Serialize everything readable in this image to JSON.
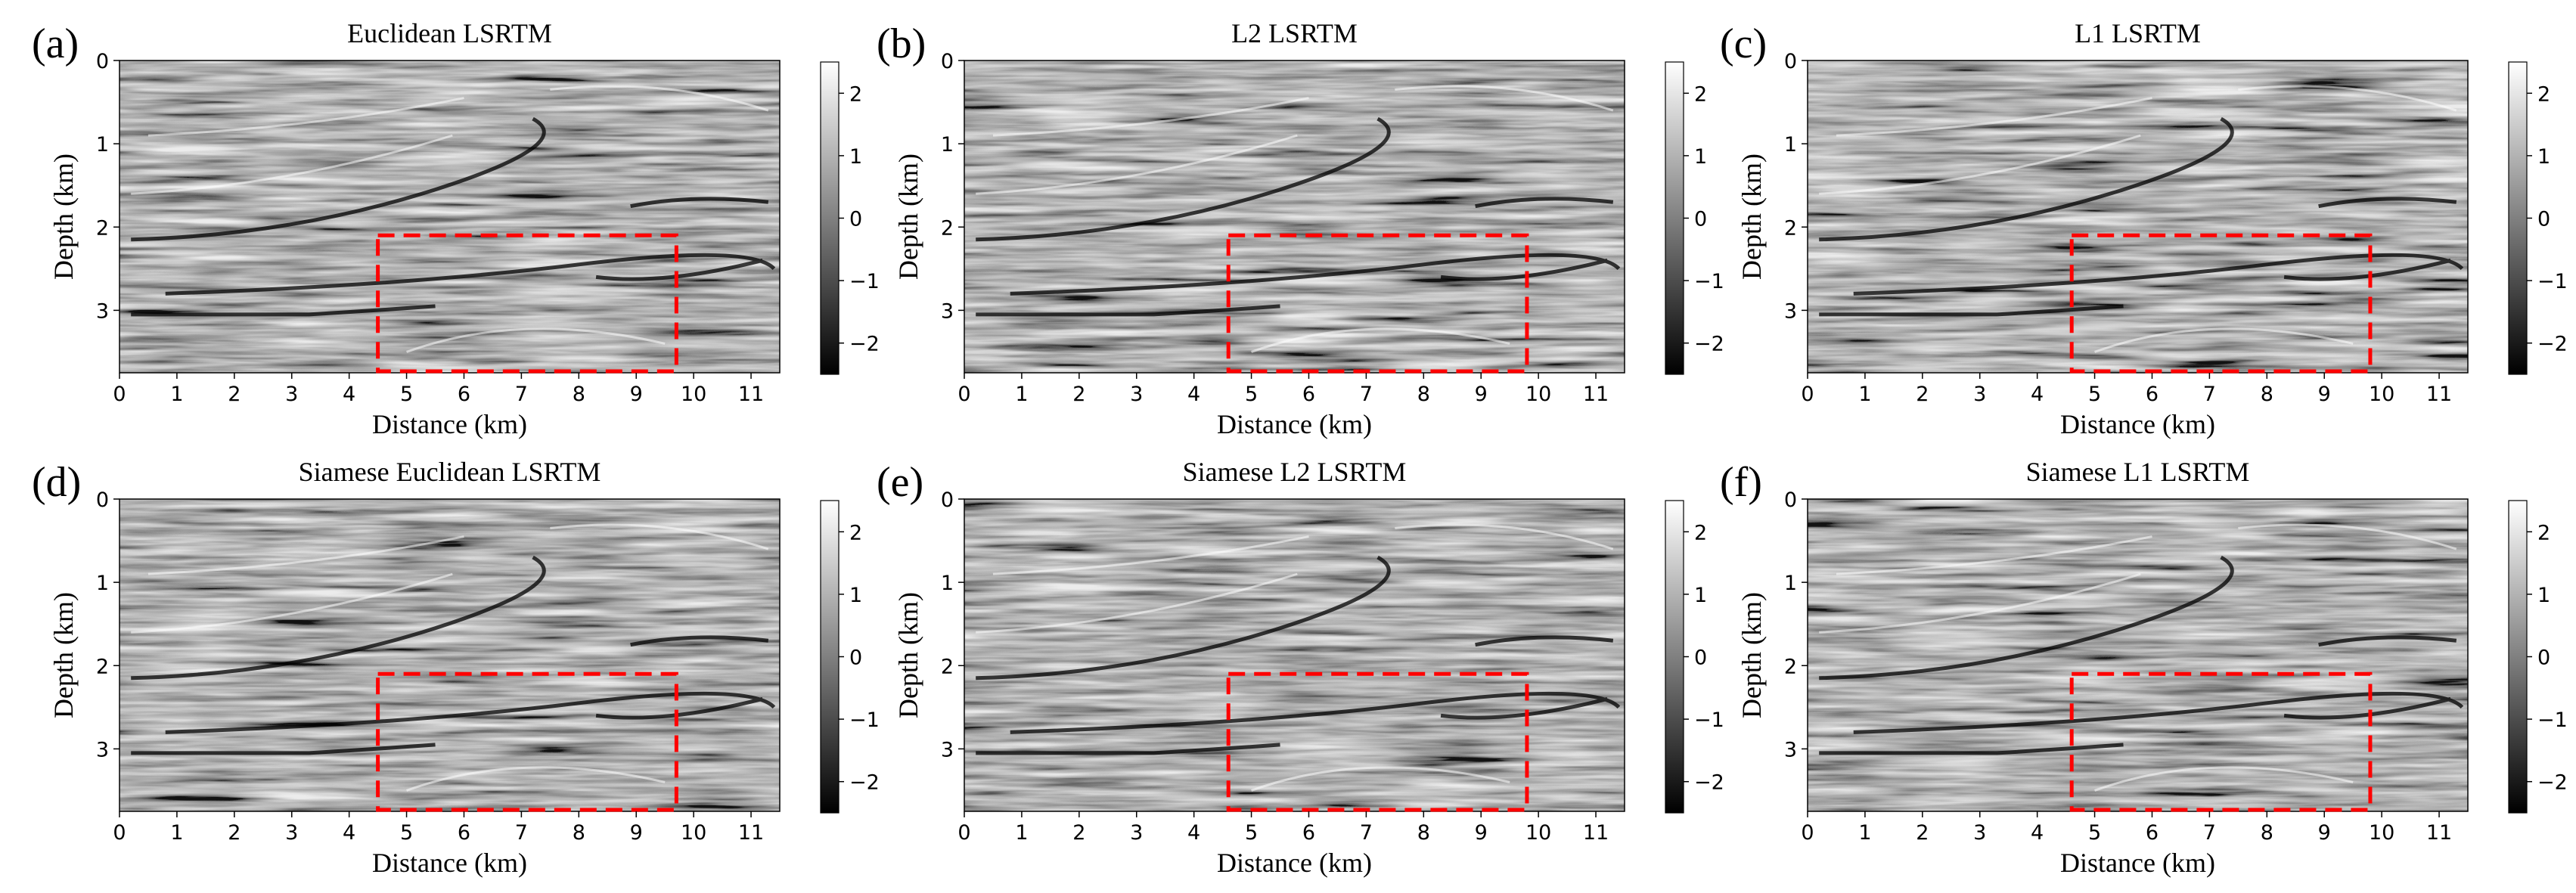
{
  "figure": {
    "description_free": true
  },
  "colors": {
    "box": "#ff0000",
    "frame": "#000000",
    "background": "#ffffff",
    "cmap_low": "#000000",
    "cmap_high": "#ffffff"
  },
  "chart_data": [
    {
      "type": "heatmap",
      "panel_label": "(a)",
      "title": "Euclidean LSRTM",
      "xlabel": "Distance (km)",
      "ylabel": "Depth (km)",
      "xlim": [
        0,
        11.5
      ],
      "ylim": [
        3.75,
        0
      ],
      "xticks": [
        0,
        1,
        2,
        3,
        4,
        5,
        6,
        7,
        8,
        9,
        10,
        11
      ],
      "yticks": [
        0,
        1,
        2,
        3
      ],
      "colorbar": {
        "range": [
          -2.5,
          2.5
        ],
        "ticks": [
          2,
          1,
          0,
          -1,
          -2
        ],
        "tick_labels": [
          "2",
          "1",
          "0",
          "−1",
          "−2"
        ]
      },
      "highlight_box": {
        "x0": 4.5,
        "x1": 9.7,
        "y0": 2.1,
        "y1": 3.75
      }
    },
    {
      "type": "heatmap",
      "panel_label": "(b)",
      "title": "L2 LSRTM",
      "xlabel": "Distance (km)",
      "ylabel": "Depth (km)",
      "xlim": [
        0,
        11.5
      ],
      "ylim": [
        3.75,
        0
      ],
      "xticks": [
        0,
        1,
        2,
        3,
        4,
        5,
        6,
        7,
        8,
        9,
        10,
        11
      ],
      "yticks": [
        0,
        1,
        2,
        3
      ],
      "colorbar": {
        "range": [
          -2.5,
          2.5
        ],
        "ticks": [
          2,
          1,
          0,
          -1,
          -2
        ],
        "tick_labels": [
          "2",
          "1",
          "0",
          "−1",
          "−2"
        ]
      },
      "highlight_box": {
        "x0": 4.6,
        "x1": 9.8,
        "y0": 2.1,
        "y1": 3.75
      }
    },
    {
      "type": "heatmap",
      "panel_label": "(c)",
      "title": "L1 LSRTM",
      "xlabel": "Distance (km)",
      "ylabel": "Depth (km)",
      "xlim": [
        0,
        11.5
      ],
      "ylim": [
        3.75,
        0
      ],
      "xticks": [
        0,
        1,
        2,
        3,
        4,
        5,
        6,
        7,
        8,
        9,
        10,
        11
      ],
      "yticks": [
        0,
        1,
        2,
        3
      ],
      "colorbar": {
        "range": [
          -2.5,
          2.5
        ],
        "ticks": [
          2,
          1,
          0,
          -1,
          -2
        ],
        "tick_labels": [
          "2",
          "1",
          "0",
          "−1",
          "−2"
        ]
      },
      "highlight_box": {
        "x0": 4.6,
        "x1": 9.8,
        "y0": 2.1,
        "y1": 3.75
      }
    },
    {
      "type": "heatmap",
      "panel_label": "(d)",
      "title": "Siamese Euclidean LSRTM",
      "xlabel": "Distance (km)",
      "ylabel": "Depth (km)",
      "xlim": [
        0,
        11.5
      ],
      "ylim": [
        3.75,
        0
      ],
      "xticks": [
        0,
        1,
        2,
        3,
        4,
        5,
        6,
        7,
        8,
        9,
        10,
        11
      ],
      "yticks": [
        0,
        1,
        2,
        3
      ],
      "colorbar": {
        "range": [
          -2.5,
          2.5
        ],
        "ticks": [
          2,
          1,
          0,
          -1,
          -2
        ],
        "tick_labels": [
          "2",
          "1",
          "0",
          "−1",
          "−2"
        ]
      },
      "highlight_box": {
        "x0": 4.5,
        "x1": 9.7,
        "y0": 2.1,
        "y1": 3.75
      }
    },
    {
      "type": "heatmap",
      "panel_label": "(e)",
      "title": "Siamese L2 LSRTM",
      "xlabel": "Distance (km)",
      "ylabel": "Depth (km)",
      "xlim": [
        0,
        11.5
      ],
      "ylim": [
        3.75,
        0
      ],
      "xticks": [
        0,
        1,
        2,
        3,
        4,
        5,
        6,
        7,
        8,
        9,
        10,
        11
      ],
      "yticks": [
        0,
        1,
        2,
        3
      ],
      "colorbar": {
        "range": [
          -2.5,
          2.5
        ],
        "ticks": [
          2,
          1,
          0,
          -1,
          -2
        ],
        "tick_labels": [
          "2",
          "1",
          "0",
          "−1",
          "−2"
        ]
      },
      "highlight_box": {
        "x0": 4.6,
        "x1": 9.8,
        "y0": 2.1,
        "y1": 3.75
      }
    },
    {
      "type": "heatmap",
      "panel_label": "(f)",
      "title": "Siamese L1 LSRTM",
      "xlabel": "Distance (km)",
      "ylabel": "Depth (km)",
      "xlim": [
        0,
        11.5
      ],
      "ylim": [
        3.75,
        0
      ],
      "xticks": [
        0,
        1,
        2,
        3,
        4,
        5,
        6,
        7,
        8,
        9,
        10,
        11
      ],
      "yticks": [
        0,
        1,
        2,
        3
      ],
      "colorbar": {
        "range": [
          -2.5,
          2.5
        ],
        "ticks": [
          2,
          1,
          0,
          -1,
          -2
        ],
        "tick_labels": [
          "2",
          "1",
          "0",
          "−1",
          "−2"
        ]
      },
      "highlight_box": {
        "x0": 4.6,
        "x1": 9.8,
        "y0": 2.1,
        "y1": 3.75
      }
    }
  ]
}
